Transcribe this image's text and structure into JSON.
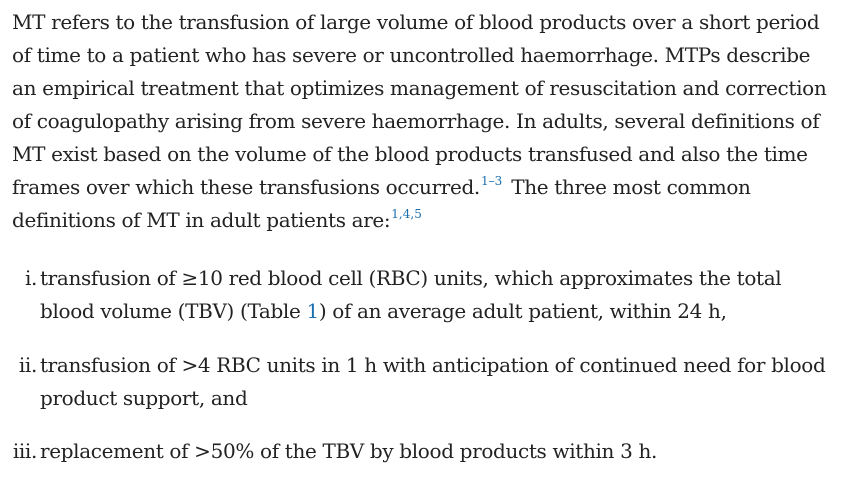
{
  "paragraph": {
    "text_1": "MT refers to the transfusion of large volume of blood products over a short period of time to a patient who has severe or uncontrolled haemorrhage. MTPs describe an empirical treatment that optimizes management of resuscitation and correction of coagulopathy arising from severe haemorrhage. In adults, several definitions of MT exist based on the volume of the blood products transfused and also the time frames over which these transfusions occurred.",
    "ref_1": "1–3",
    "text_2": " The three most common definitions of MT in adult patients are:",
    "ref_2": "1,4,5"
  },
  "definitions": [
    {
      "marker": "i.",
      "text_a": "transfusion of ≥10 red blood cell (RBC) units, which approximates the total blood volume (TBV) (Table ",
      "link": "1",
      "text_b": ") of an average adult patient, within 24 h,"
    },
    {
      "marker": "ii.",
      "text": "transfusion of >4 RBC units in 1 h with anticipation of continued need for blood product support, and"
    },
    {
      "marker": "iii.",
      "text": "replacement of >50% of the TBV by blood products within 3 h."
    }
  ]
}
